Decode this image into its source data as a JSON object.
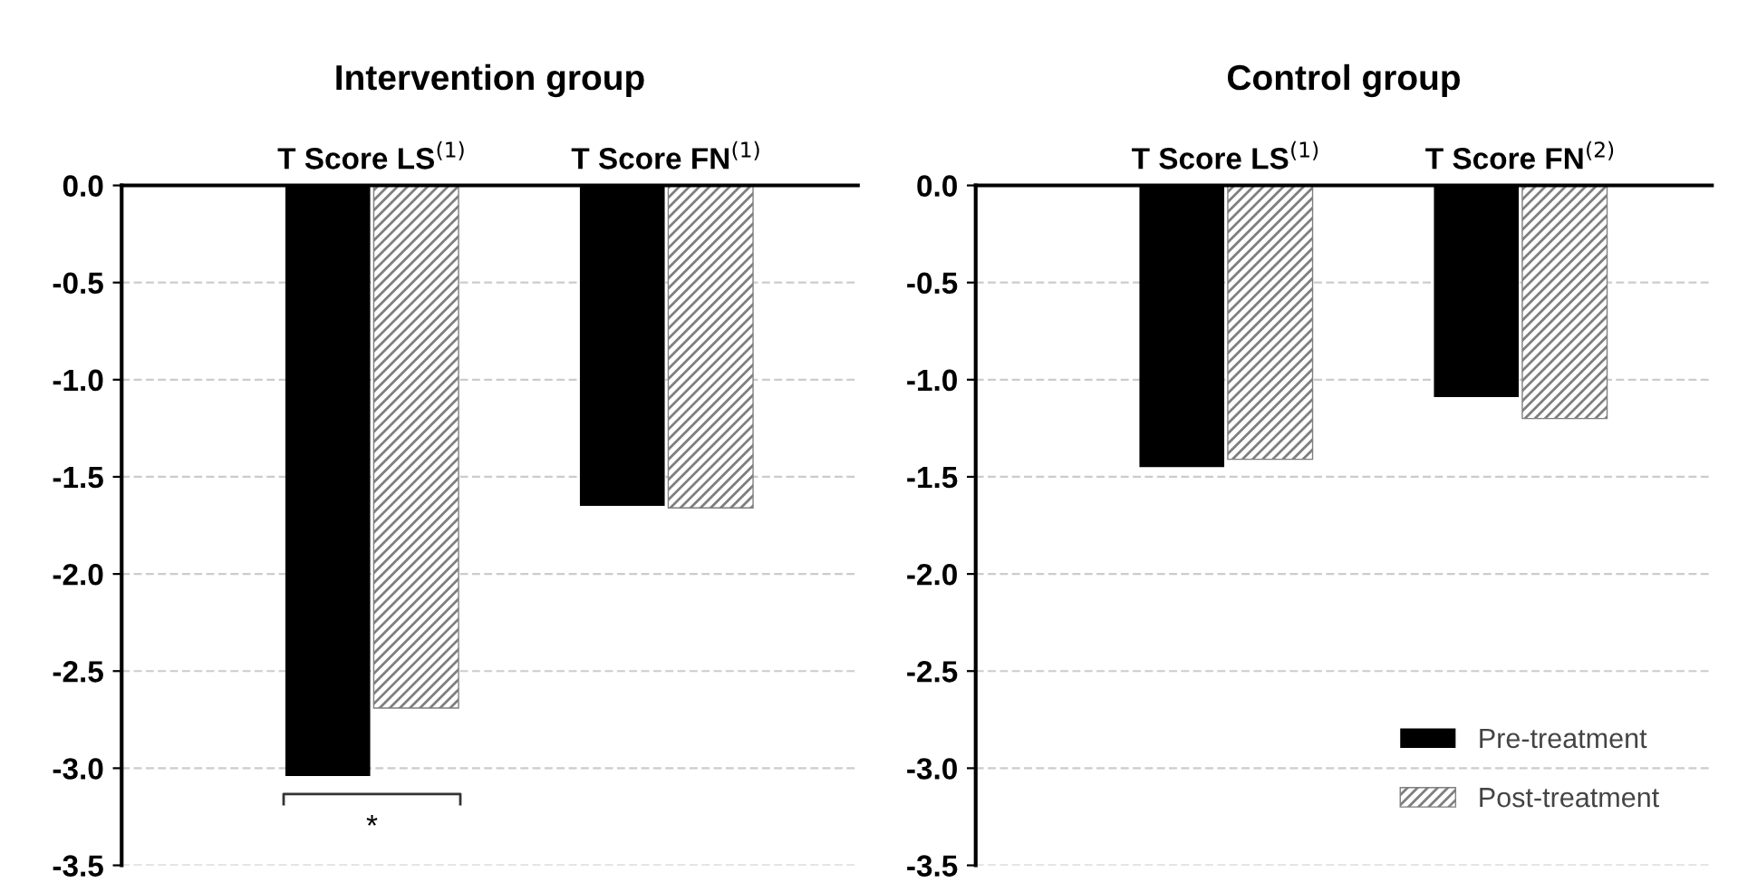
{
  "chart_data": [
    {
      "type": "bar",
      "title": "Intervention group",
      "categories": [
        "T Score LS$^{(1)}$",
        "T Score FN$^{(1)}$"
      ],
      "series": [
        {
          "color": "#000000",
          "values": [
            -3.04,
            -1.65
          ]
        },
        {
          "color": "#7f7f7f",
          "values": [
            -2.69,
            -1.66
          ]
        }
      ],
      "ylim": [
        -3.5,
        0
      ],
      "yticks": [
        {
          "value": 0,
          "label": "0.0"
        },
        {
          "value": -0.5,
          "label": "-0.5"
        },
        {
          "value": -1,
          "label": "-1.0"
        },
        {
          "value": -1.5,
          "label": "-1.5"
        },
        {
          "value": -2,
          "label": "-2.0"
        },
        {
          "value": -2.5,
          "label": "-2.5"
        },
        {
          "value": -3,
          "label": "-3.0"
        },
        {
          "value": -3.5,
          "label": "-3.5"
        }
      ],
      "grid": "y",
      "annotations": [
        "*"
      ]
    },
    {
      "type": "bar",
      "title": "Control group",
      "categories": [
        "T Score LS$^{(1)}$",
        "T Score FN$^{(2)}$"
      ],
      "series": [
        {
          "name": "Pre-treatment",
          "color": "#000000",
          "values": [
            -1.45,
            -1.09
          ]
        },
        {
          "name": "Post-treatment",
          "color": "#7f7f7f",
          "values": [
            -1.41,
            -1.2
          ]
        }
      ],
      "ylim": [
        -3.5,
        0
      ],
      "yticks": [
        {
          "value": 0,
          "label": "0.0"
        },
        {
          "value": -0.5,
          "label": "-0.5"
        },
        {
          "value": -1,
          "label": "-1.0"
        },
        {
          "value": -1.5,
          "label": "-1.5"
        },
        {
          "value": -2,
          "label": "-2.0"
        },
        {
          "value": -2.5,
          "label": "-2.5"
        },
        {
          "value": -3,
          "label": "-3.0"
        },
        {
          "value": -3.5,
          "label": "-3.5"
        }
      ],
      "grid": "y",
      "legend": "bottom right"
    }
  ]
}
